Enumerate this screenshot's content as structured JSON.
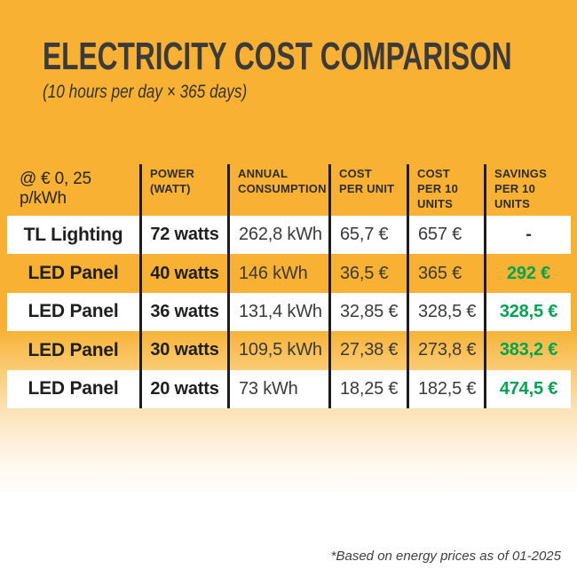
{
  "header": {
    "title": "ELECTRICITY COST COMPARISON",
    "subtitle": "(10 hours per day × 365 days)"
  },
  "footer": {
    "note": "*Based on energy prices as of 01-2025"
  },
  "colors": {
    "background_orange": "#F8B133",
    "row_white": "#FFFFFF",
    "divider_black": "#1D1D1D",
    "text_dark": "#3A3A3A",
    "savings_green": "#00A551"
  },
  "chart_data": {
    "type": "table",
    "title": "ELECTRICITY COST COMPARISON",
    "subtitle": "(10 hours per day × 365 days)",
    "rate_label": "@ € 0, 25 p/kWh",
    "columns": [
      "POWER\n(WATT)",
      "ANNUAL\nCONSUMPTION",
      "COST\nPER UNIT",
      "COST\nPER 10\nUNITS",
      "SAVINGS\nPER 10\nUNITS"
    ],
    "rows": [
      {
        "label": "TL Lighting",
        "power": "72 watts",
        "annual": "262,8 kWh",
        "cost_unit": "65,7 €",
        "cost_10": "657 €",
        "savings": "-"
      },
      {
        "label": "LED Panel",
        "power": "40 watts",
        "annual": "146 kWh",
        "cost_unit": "36,5 €",
        "cost_10": "365 €",
        "savings": "292 €"
      },
      {
        "label": "LED Panel",
        "power": "36 watts",
        "annual": "131,4 kWh",
        "cost_unit": "32,85 €",
        "cost_10": "328,5 €",
        "savings": "328,5 €"
      },
      {
        "label": "LED Panel",
        "power": "30 watts",
        "annual": "109,5 kWh",
        "cost_unit": "27,38 €",
        "cost_10": "273,8 €",
        "savings": "383,2 €"
      },
      {
        "label": "LED Panel",
        "power": "20 watts",
        "annual": "73 kWh",
        "cost_unit": "18,25 €",
        "cost_10": "182,5 €",
        "savings": "474,5 €"
      }
    ],
    "footnote": "*Based on energy prices as of 01-2025"
  }
}
